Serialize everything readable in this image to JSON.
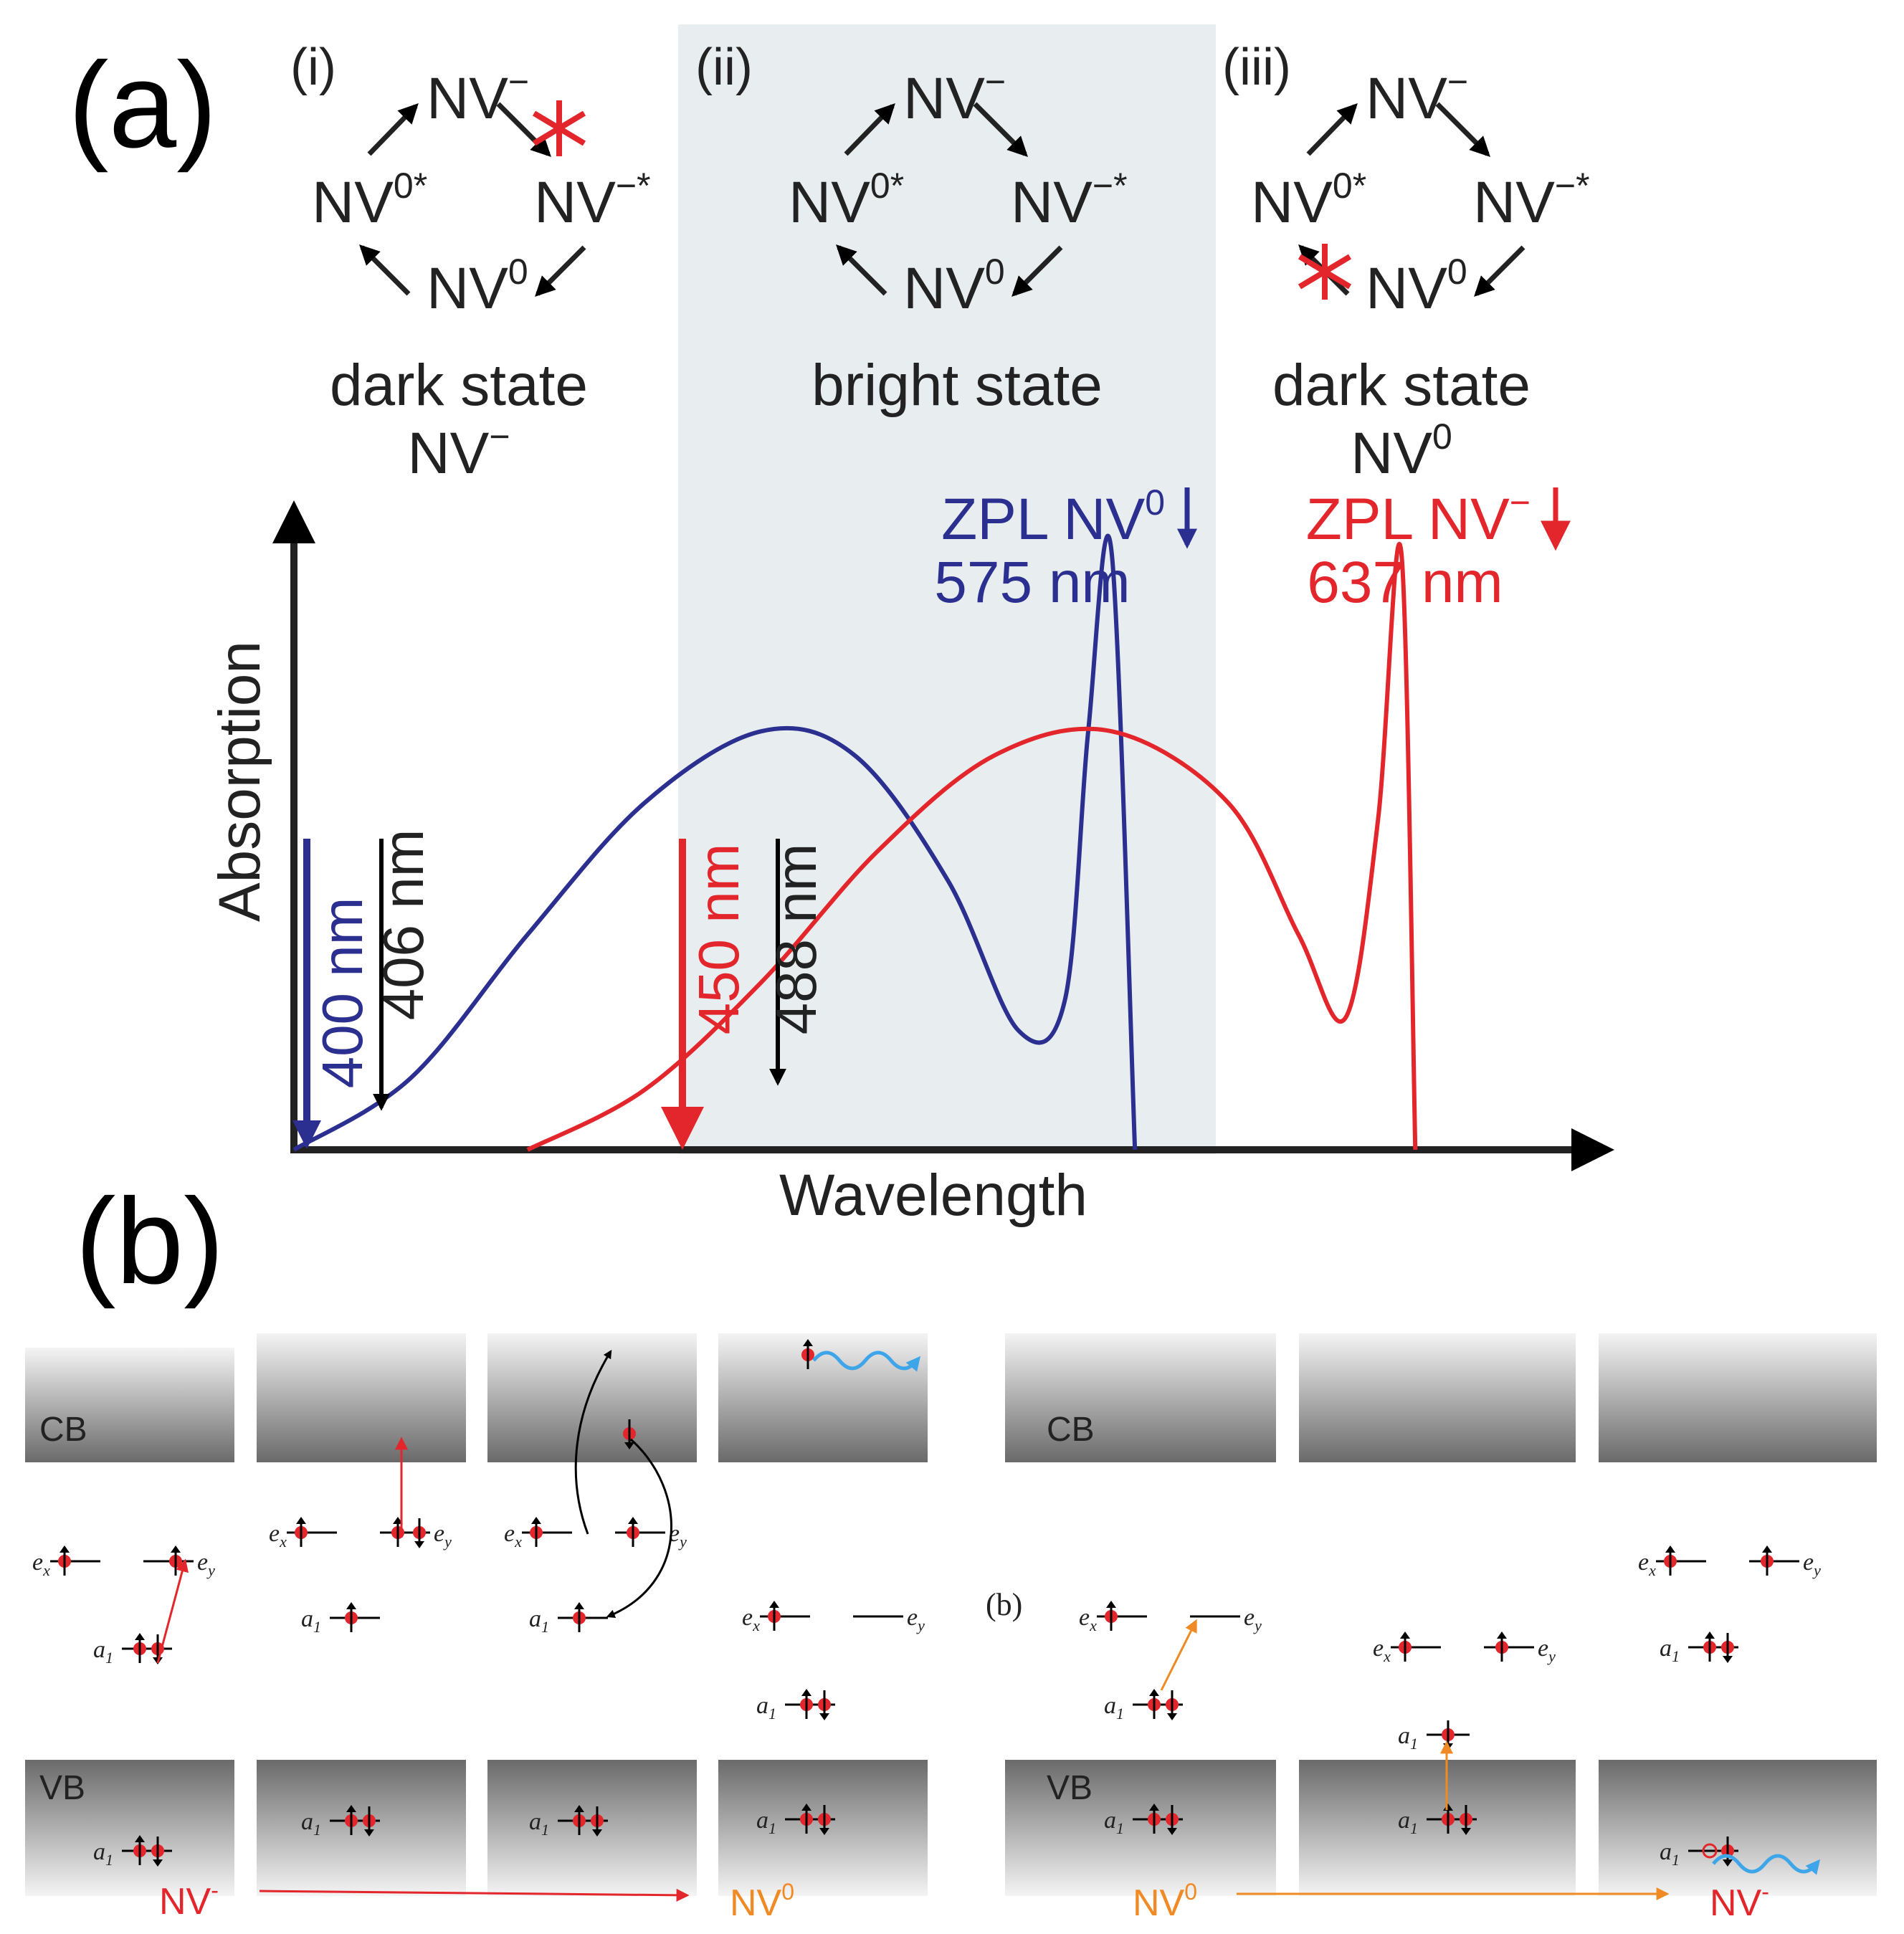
{
  "figure": {
    "panel_a_label": "(a)",
    "panel_b_label": "(b)",
    "inner_b_label": "(b)"
  },
  "cycles": [
    {
      "roman": "(i)",
      "top": "NV",
      "top_sup": "−",
      "left": "NV",
      "left_sup": "0*",
      "right": "NV",
      "right_sup": "−*",
      "bottom": "NV",
      "bottom_sup": "0",
      "caption1": "dark state",
      "caption2": "NV",
      "caption2_sup": "−",
      "blocked": "top-right"
    },
    {
      "roman": "(ii)",
      "top": "NV",
      "top_sup": "−",
      "left": "NV",
      "left_sup": "0*",
      "right": "NV",
      "right_sup": "−*",
      "bottom": "NV",
      "bottom_sup": "0",
      "caption1": "bright state",
      "caption2": "",
      "caption2_sup": "",
      "blocked": "none"
    },
    {
      "roman": "(iii)",
      "top": "NV",
      "top_sup": "−",
      "left": "NV",
      "left_sup": "0*",
      "right": "NV",
      "right_sup": "−*",
      "bottom": "NV",
      "bottom_sup": "0",
      "caption1": "dark state",
      "caption2": "NV",
      "caption2_sup": "0",
      "blocked": "bottom-left"
    }
  ],
  "chart_data": {
    "type": "line",
    "title": "",
    "xlabel": "Wavelength",
    "ylabel": "Absorption",
    "x_units": "nm (schematic, unscaled)",
    "y_units": "arbitrary",
    "highlight_band": {
      "from_nm": 450,
      "to_nm": 575,
      "label": "bright state"
    },
    "series": [
      {
        "name": "NV0 absorption",
        "color": "#2b2f8f",
        "x": [
          400,
          425,
          450,
          475,
          500,
          520,
          540,
          555,
          565,
          570,
          575,
          580
        ],
        "y": [
          0,
          0.12,
          0.36,
          0.58,
          0.7,
          0.66,
          0.45,
          0.2,
          0.25,
          0.7,
          1.0,
          0
        ]
      },
      {
        "name": "NV- absorption",
        "color": "#e3262b",
        "x": [
          450,
          475,
          500,
          525,
          550,
          575,
          600,
          615,
          625,
          632,
          637,
          640
        ],
        "y": [
          0,
          0.1,
          0.28,
          0.5,
          0.66,
          0.7,
          0.58,
          0.36,
          0.22,
          0.55,
          1.0,
          0
        ]
      }
    ],
    "zpl": [
      {
        "label": "ZPL NV",
        "sup": "0",
        "value": "575 nm",
        "color": "#2b2f8f"
      },
      {
        "label": "ZPL NV",
        "sup": "−",
        "value": "637 nm",
        "color": "#e3262b"
      }
    ],
    "excitation": [
      {
        "label": "400 nm",
        "color": "#2b2f8f"
      },
      {
        "label": "406 nm",
        "color": "#000000"
      },
      {
        "label": "450 nm",
        "color": "#e3262b"
      },
      {
        "label": "488 nm",
        "color": "#000000"
      }
    ]
  },
  "bands": {
    "cb": "CB",
    "vb": "VB",
    "ex": "e",
    "ex_sub": "x",
    "ey": "e",
    "ey_sub": "y",
    "a1": "a",
    "a1_sub": "1"
  },
  "transitions": {
    "left_from": "NV",
    "left_from_sup": "-",
    "left_to": "NV",
    "left_to_sup": "0",
    "right_from": "NV",
    "right_from_sup": "0",
    "right_to": "NV",
    "right_to_sup": "-"
  },
  "colors": {
    "nv0_blue": "#2b2f8f",
    "nvm_red": "#e3262b",
    "band_bg": "#e8eef0",
    "orange": "#f08a24",
    "photon_blue": "#3ea6e8"
  }
}
